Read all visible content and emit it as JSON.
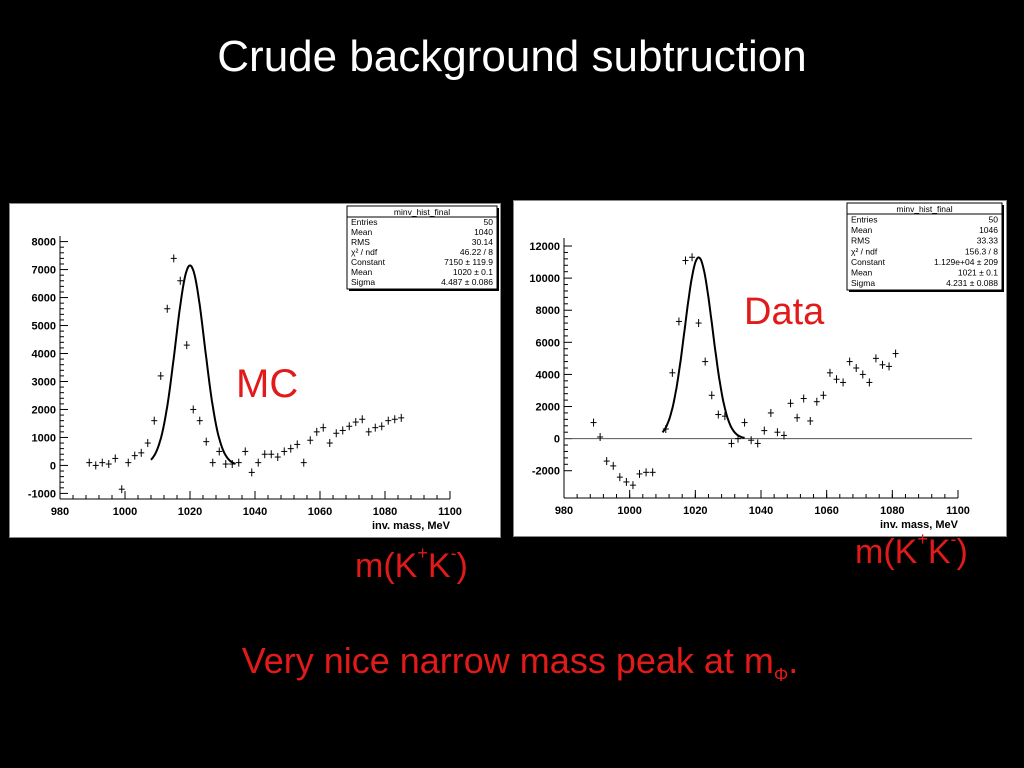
{
  "slide": {
    "title": "Crude background subtruction",
    "mc_label": "MC",
    "data_label": "Data",
    "axis_caption_left": {
      "pre": "m(K",
      "sup1": "+",
      "mid": "K",
      "sup2": "-",
      "post": ")"
    },
    "axis_caption_right": {
      "pre": "m(K",
      "sup1": "+",
      "mid": "K",
      "sup2": "-",
      "post": ")"
    },
    "caption": {
      "text": "Very nice narrow mass peak at m",
      "sub": "Φ",
      "end": "."
    },
    "text_color": "#e21a1a"
  },
  "chart_data": [
    {
      "type": "scatter",
      "title": "",
      "xlabel": "inv. mass, MeV",
      "ylabel": "",
      "xlim": [
        980,
        1100
      ],
      "ylim": [
        -1200,
        8200
      ],
      "xticks": [
        980,
        1000,
        1020,
        1040,
        1060,
        1080,
        1100
      ],
      "yticks": [
        -1000,
        0,
        1000,
        2000,
        3000,
        4000,
        5000,
        6000,
        7000,
        8000
      ],
      "zero_line": false,
      "points": [
        [
          989,
          100
        ],
        [
          991,
          0
        ],
        [
          993,
          100
        ],
        [
          995,
          50
        ],
        [
          997,
          250
        ],
        [
          999,
          -850
        ],
        [
          1001,
          100
        ],
        [
          1003,
          350
        ],
        [
          1005,
          450
        ],
        [
          1007,
          800
        ],
        [
          1009,
          1600
        ],
        [
          1011,
          3200
        ],
        [
          1013,
          5600
        ],
        [
          1015,
          7400
        ],
        [
          1017,
          6600
        ],
        [
          1019,
          4300
        ],
        [
          1021,
          2000
        ],
        [
          1023,
          1600
        ],
        [
          1025,
          850
        ],
        [
          1027,
          100
        ],
        [
          1029,
          500
        ],
        [
          1031,
          50
        ],
        [
          1033,
          50
        ],
        [
          1035,
          100
        ],
        [
          1037,
          500
        ],
        [
          1039,
          -250
        ],
        [
          1041,
          100
        ],
        [
          1043,
          400
        ],
        [
          1045,
          400
        ],
        [
          1047,
          300
        ],
        [
          1049,
          500
        ],
        [
          1051,
          600
        ],
        [
          1053,
          750
        ],
        [
          1055,
          100
        ],
        [
          1057,
          900
        ],
        [
          1059,
          1200
        ],
        [
          1061,
          1350
        ],
        [
          1063,
          800
        ],
        [
          1065,
          1150
        ],
        [
          1067,
          1250
        ],
        [
          1069,
          1400
        ],
        [
          1071,
          1550
        ],
        [
          1073,
          1650
        ],
        [
          1075,
          1200
        ],
        [
          1077,
          1350
        ],
        [
          1079,
          1400
        ],
        [
          1081,
          1600
        ],
        [
          1083,
          1650
        ],
        [
          1085,
          1700
        ]
      ],
      "fit": {
        "constant": 7150,
        "mean": 1020,
        "sigma": 4.487,
        "xrange": [
          1008,
          1034
        ]
      },
      "stats_box": {
        "name": "minv_hist_final",
        "rows": [
          [
            "Entries",
            "50"
          ],
          [
            "Mean",
            "1040"
          ],
          [
            "RMS",
            "30.14"
          ],
          [
            "χ² / ndf",
            "46.22 / 8"
          ],
          [
            "Constant",
            "7150 ± 119.9"
          ],
          [
            "Mean",
            "1020 ± 0.1"
          ],
          [
            "Sigma",
            "4.487 ± 0.086"
          ]
        ]
      }
    },
    {
      "type": "scatter",
      "title": "",
      "xlabel": "inv. mass, MeV",
      "ylabel": "",
      "xlim": [
        980,
        1100
      ],
      "ylim": [
        -3700,
        12500
      ],
      "xticks": [
        980,
        1000,
        1020,
        1040,
        1060,
        1080,
        1100
      ],
      "yticks": [
        -2000,
        0,
        2000,
        4000,
        6000,
        8000,
        10000,
        12000
      ],
      "zero_line": true,
      "points": [
        [
          989,
          1000
        ],
        [
          991,
          100
        ],
        [
          993,
          -1400
        ],
        [
          995,
          -1700
        ],
        [
          997,
          -2400
        ],
        [
          999,
          -2700
        ],
        [
          1001,
          -2900
        ],
        [
          1003,
          -2200
        ],
        [
          1005,
          -2100
        ],
        [
          1007,
          -2100
        ],
        [
          1011,
          600
        ],
        [
          1013,
          4100
        ],
        [
          1015,
          7300
        ],
        [
          1017,
          11100
        ],
        [
          1019,
          11300
        ],
        [
          1021,
          7200
        ],
        [
          1023,
          4800
        ],
        [
          1025,
          2700
        ],
        [
          1027,
          1500
        ],
        [
          1029,
          1400
        ],
        [
          1031,
          -300
        ],
        [
          1033,
          0
        ],
        [
          1035,
          1000
        ],
        [
          1037,
          -100
        ],
        [
          1039,
          -300
        ],
        [
          1041,
          500
        ],
        [
          1043,
          1600
        ],
        [
          1045,
          400
        ],
        [
          1047,
          200
        ],
        [
          1049,
          2200
        ],
        [
          1051,
          1300
        ],
        [
          1053,
          2500
        ],
        [
          1055,
          1100
        ],
        [
          1057,
          2300
        ],
        [
          1059,
          2700
        ],
        [
          1061,
          4100
        ],
        [
          1063,
          3700
        ],
        [
          1065,
          3500
        ],
        [
          1067,
          4800
        ],
        [
          1069,
          4400
        ],
        [
          1071,
          4000
        ],
        [
          1073,
          3500
        ],
        [
          1075,
          5000
        ],
        [
          1077,
          4600
        ],
        [
          1079,
          4500
        ],
        [
          1081,
          5300
        ]
      ],
      "fit": {
        "constant": 11290,
        "mean": 1021,
        "sigma": 4.231,
        "xrange": [
          1010,
          1035
        ]
      },
      "stats_box": {
        "name": "minv_hist_final",
        "rows": [
          [
            "Entries",
            "50"
          ],
          [
            "Mean",
            "1046"
          ],
          [
            "RMS",
            "33.33"
          ],
          [
            "χ² / ndf",
            "156.3 / 8"
          ],
          [
            "Constant",
            "1.129e+04 ± 209"
          ],
          [
            "Mean",
            "1021 ± 0.1"
          ],
          [
            "Sigma",
            "4.231 ± 0.088"
          ]
        ]
      }
    }
  ]
}
